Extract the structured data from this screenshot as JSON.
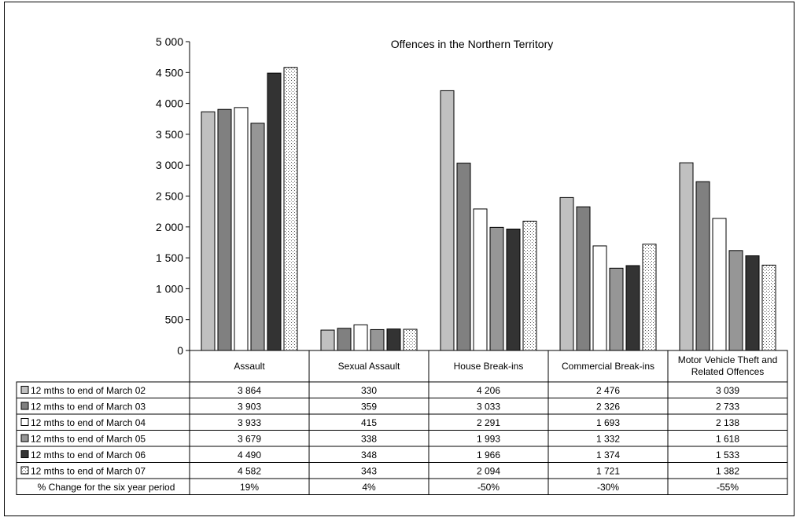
{
  "chart_data": {
    "type": "bar",
    "title": "Offences in the Northern Territory",
    "ylim": [
      0,
      5000
    ],
    "yticks": [
      0,
      500,
      1000,
      1500,
      2000,
      2500,
      3000,
      3500,
      4000,
      4500,
      5000
    ],
    "ytick_labels": [
      "0",
      "500",
      "1 000",
      "1 500",
      "2 000",
      "2 500",
      "3 000",
      "3 500",
      "4 000",
      "4 500",
      "5 000"
    ],
    "categories": [
      "Assault",
      "Sexual Assault",
      "House Break-ins",
      "Commercial Break-ins",
      "Motor Vehicle Theft and Related Offences"
    ],
    "category_lines": [
      [
        "Assault"
      ],
      [
        "Sexual Assault"
      ],
      [
        "House Break-ins"
      ],
      [
        "Commercial Break-ins"
      ],
      [
        "Motor Vehicle Theft and",
        "Related Offences"
      ]
    ],
    "grid": false,
    "legend": "table-left",
    "series": [
      {
        "name": "12 mths to end of March 02",
        "values": [
          3864,
          330,
          4206,
          2476,
          3039
        ],
        "display": [
          "3 864",
          "330",
          "4 206",
          "2 476",
          "3 039"
        ],
        "fill": "#c0c0c0",
        "pattern": "solid"
      },
      {
        "name": "12 mths to end of March 03",
        "values": [
          3903,
          359,
          3033,
          2326,
          2733
        ],
        "display": [
          "3 903",
          "359",
          "3 033",
          "2 326",
          "2 733"
        ],
        "fill": "#808080",
        "pattern": "solid"
      },
      {
        "name": "12 mths to end of March 04",
        "values": [
          3933,
          415,
          2291,
          1693,
          2138
        ],
        "display": [
          "3 933",
          "415",
          "2 291",
          "1 693",
          "2 138"
        ],
        "fill": "#ffffff",
        "pattern": "solid"
      },
      {
        "name": "12 mths to end of March 05",
        "values": [
          3679,
          338,
          1993,
          1332,
          1618
        ],
        "display": [
          "3 679",
          "338",
          "1 993",
          "1 332",
          "1 618"
        ],
        "fill": "#969696",
        "pattern": "solid"
      },
      {
        "name": "12 mths to end of March 06",
        "values": [
          4490,
          348,
          1966,
          1374,
          1533
        ],
        "display": [
          "4 490",
          "348",
          "1 966",
          "1 374",
          "1 533"
        ],
        "fill": "#333333",
        "pattern": "solid"
      },
      {
        "name": "12 mths to end of March 07",
        "values": [
          4582,
          343,
          2094,
          1721,
          1382
        ],
        "display": [
          "4 582",
          "343",
          "2 094",
          "1 721",
          "1 382"
        ],
        "fill": "#ffffff",
        "pattern": "dots"
      }
    ],
    "extra_row": {
      "label": "% Change for the six year period",
      "values": [
        "19%",
        "4%",
        "-50%",
        "-30%",
        "-55%"
      ]
    }
  }
}
